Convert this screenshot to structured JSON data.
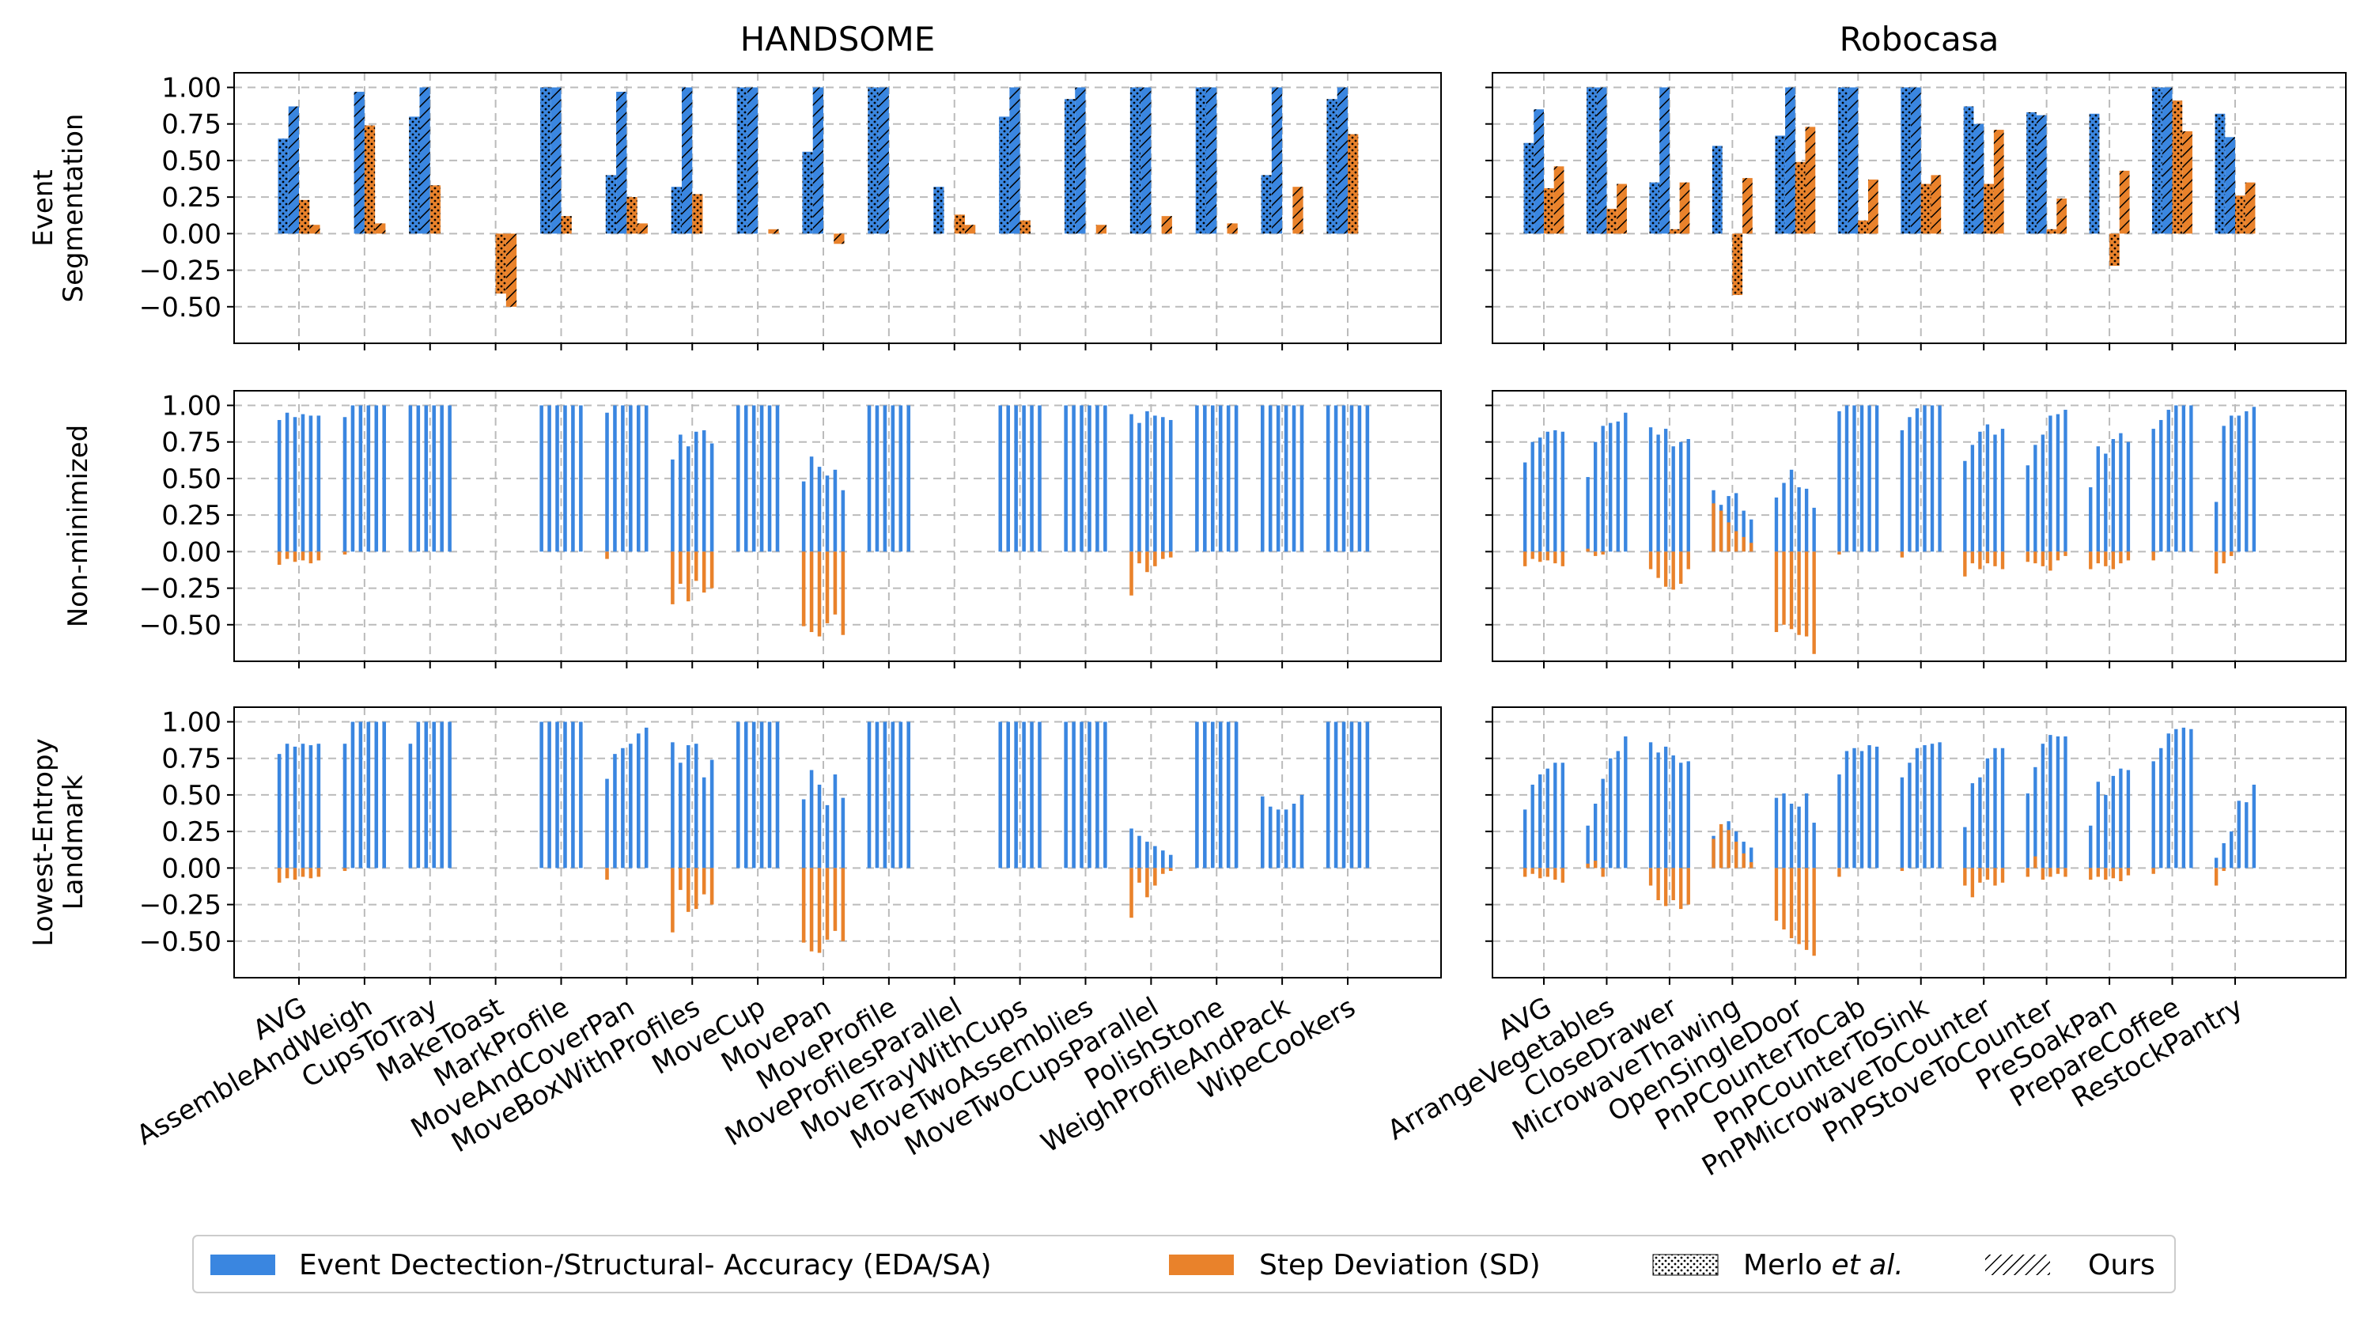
{
  "legend": {
    "eda_label": "Event Dectection-/Structural- Accuracy (EDA/SA)",
    "sd_label": "Step Deviation (SD)",
    "merlo_label": "Merlo",
    "merlo_etal": "et al.",
    "merlo_period": ".",
    "ours_label": "Ours"
  },
  "colors": {
    "eda": "#3a86e0",
    "sd": "#e9822b",
    "grid": "#bbbbbb",
    "axis": "#000000"
  },
  "chart_data": {
    "type": "bar",
    "columns": [
      {
        "title": "HANDSOME",
        "categories": [
          "AVG",
          "AssembleAndWeigh",
          "CupsToTray",
          "MakeToast",
          "MarkProfile",
          "MoveAndCoverPan",
          "MoveBoxWithProfiles",
          "MoveCup",
          "MovePan",
          "MoveProfile",
          "MoveProfilesParallel",
          "MoveTrayWithCups",
          "MoveTwoAssemblies",
          "MoveTwoCupsParallel",
          "PolishStone",
          "WeighProfileAndPack",
          "WipeCookers"
        ]
      },
      {
        "title": "Robocasa",
        "categories": [
          "AVG",
          "ArrangeVegetables",
          "CloseDrawer",
          "MicrowaveThawing",
          "OpenSingleDoor",
          "PnPCounterToCab",
          "PnPCounterToSink",
          "PnPMicrowaveToCounter",
          "PnPStoveToCounter",
          "PreSoakPan",
          "PrepareCoffee",
          "RestockPantry"
        ]
      }
    ],
    "rows": [
      {
        "ylabel": [
          "Event",
          "Segmentation"
        ],
        "ylim": [
          -0.75,
          1.1
        ],
        "yticks": [
          "1.00",
          "0.75",
          "0.50",
          "0.25",
          "0.00",
          "−0.25",
          "−0.50"
        ],
        "ytick_values": [
          1.0,
          0.75,
          0.5,
          0.25,
          0.0,
          -0.25,
          -0.5
        ]
      },
      {
        "ylabel": [
          "Non-minimized"
        ],
        "ylim": [
          -0.75,
          1.1
        ],
        "yticks": [
          "1.00",
          "0.75",
          "0.50",
          "0.25",
          "0.00",
          "−0.25",
          "−0.50"
        ],
        "ytick_values": [
          1.0,
          0.75,
          0.5,
          0.25,
          0.0,
          -0.25,
          -0.5
        ]
      },
      {
        "ylabel": [
          "Lowest-Entropy",
          "Landmark"
        ],
        "ylim": [
          -0.75,
          1.1
        ],
        "yticks": [
          "1.00",
          "0.75",
          "0.50",
          "0.25",
          "0.00",
          "−0.25",
          "−0.50"
        ],
        "ytick_values": [
          1.0,
          0.75,
          0.5,
          0.25,
          0.0,
          -0.25,
          -0.5
        ]
      }
    ],
    "series_notes": "Event Segmentation row: per category [EDA Merlo, EDA Ours, SD Merlo, SD Ours]; other rows: per category 6 thin EDA bars and 6 thin SD bars",
    "panels": {
      "handsome_event": {
        "eda_merlo": [
          0.65,
          0,
          0.8,
          0,
          1.0,
          0.4,
          0.32,
          1.0,
          0.56,
          1.0,
          0.32,
          0.8,
          0.92,
          1.0,
          1.0,
          0.4,
          0.92
        ],
        "eda_ours": [
          0.87,
          0.97,
          1.0,
          0,
          1.0,
          0.97,
          1.0,
          1.0,
          1.0,
          1.0,
          0,
          1.0,
          1.0,
          1.0,
          1.0,
          1.0,
          1.0
        ],
        "sd_merlo": [
          0.23,
          0.74,
          0.33,
          -0.41,
          0.12,
          0.25,
          0.27,
          0,
          0,
          0,
          0.13,
          0.09,
          0,
          0,
          0,
          0,
          0.68
        ],
        "sd_ours": [
          0.06,
          0.07,
          0,
          -0.5,
          0,
          0.07,
          0,
          0.03,
          -0.07,
          0,
          0.06,
          0,
          0.06,
          0.12,
          0.07,
          0.32,
          0
        ]
      },
      "robocasa_event": {
        "eda_merlo": [
          0.62,
          1.0,
          0.35,
          0.6,
          0.67,
          1.0,
          1.0,
          0.87,
          0.83,
          0.82,
          1.0,
          0.82
        ],
        "eda_ours": [
          0.85,
          1.0,
          1.0,
          0,
          1.0,
          1.0,
          1.0,
          0.75,
          0.81,
          0,
          1.0,
          0.66
        ],
        "sd_merlo": [
          0.31,
          0.17,
          0.03,
          -0.42,
          0.49,
          0.09,
          0.34,
          0.34,
          0.03,
          -0.22,
          0.91,
          0.26
        ],
        "sd_ours": [
          0.46,
          0.34,
          0.35,
          0.38,
          0.73,
          0.37,
          0.4,
          0.71,
          0.24,
          0.43,
          0.7,
          0.35
        ]
      },
      "handsome_nonmin": {
        "eda": [
          [
            0.9,
            0.95,
            0.92,
            0.94,
            0.93,
            0.93
          ],
          [
            0.92,
            1.0,
            1.0,
            1.0,
            1.0,
            1.0
          ],
          [
            1.0,
            1.0,
            1.0,
            1.0,
            1.0,
            1.0
          ],
          [
            0,
            0,
            0,
            0,
            0,
            0
          ],
          [
            1.0,
            1.0,
            1.0,
            1.0,
            1.0,
            1.0
          ],
          [
            0.95,
            1.0,
            1.0,
            1.0,
            1.0,
            1.0
          ],
          [
            0.63,
            0.8,
            0.72,
            0.82,
            0.83,
            0.74
          ],
          [
            1.0,
            1.0,
            1.0,
            1.0,
            1.0,
            1.0
          ],
          [
            0.48,
            0.65,
            0.58,
            0.52,
            0.56,
            0.42
          ],
          [
            1.0,
            1.0,
            1.0,
            1.0,
            1.0,
            1.0
          ],
          [
            0,
            0,
            0,
            0,
            0,
            0
          ],
          [
            1.0,
            1.0,
            1.0,
            1.0,
            1.0,
            1.0
          ],
          [
            1.0,
            1.0,
            1.0,
            1.0,
            1.0,
            1.0
          ],
          [
            0.94,
            0.88,
            0.96,
            0.93,
            0.92,
            0.9
          ],
          [
            1.0,
            1.0,
            1.0,
            1.0,
            1.0,
            1.0
          ],
          [
            1.0,
            1.0,
            1.0,
            1.0,
            1.0,
            1.0
          ],
          [
            1.0,
            1.0,
            1.0,
            1.0,
            1.0,
            1.0
          ]
        ],
        "sd": [
          [
            -0.09,
            -0.05,
            -0.07,
            -0.06,
            -0.08,
            -0.06
          ],
          [
            -0.02,
            0,
            0,
            0,
            0,
            0
          ],
          [
            0,
            0,
            0,
            0,
            0,
            0
          ],
          [
            0,
            0,
            0,
            0,
            0,
            0
          ],
          [
            0,
            0,
            0,
            0,
            0,
            0
          ],
          [
            -0.05,
            0,
            0,
            0,
            0,
            0
          ],
          [
            -0.36,
            -0.22,
            -0.34,
            -0.2,
            -0.28,
            -0.25
          ],
          [
            0,
            0,
            0,
            0,
            0,
            0
          ],
          [
            -0.51,
            -0.55,
            -0.58,
            -0.49,
            -0.43,
            -0.57
          ],
          [
            0,
            0,
            0,
            0,
            0,
            0
          ],
          [
            0,
            0,
            0,
            0,
            0,
            0
          ],
          [
            0,
            0,
            0,
            0,
            0,
            0
          ],
          [
            0,
            0,
            0,
            0,
            0,
            0
          ],
          [
            -0.3,
            -0.08,
            -0.14,
            -0.1,
            -0.05,
            -0.04
          ],
          [
            0,
            0,
            0,
            0,
            0,
            0
          ],
          [
            0,
            0,
            0,
            0,
            0,
            0
          ],
          [
            0,
            0,
            0,
            0,
            0,
            0
          ]
        ]
      },
      "robocasa_nonmin": {
        "eda": [
          [
            0.61,
            0.75,
            0.78,
            0.82,
            0.83,
            0.82
          ],
          [
            0.51,
            0.75,
            0.86,
            0.88,
            0.89,
            0.95
          ],
          [
            0.85,
            0.8,
            0.84,
            0.72,
            0.75,
            0.77
          ],
          [
            0.42,
            0.32,
            0.38,
            0.4,
            0.28,
            0.22
          ],
          [
            0.37,
            0.47,
            0.56,
            0.44,
            0.43,
            0.3
          ],
          [
            0.96,
            1.0,
            1.0,
            1.0,
            1.0,
            1.0
          ],
          [
            0.83,
            0.92,
            0.98,
            1.0,
            1.0,
            1.0
          ],
          [
            0.62,
            0.73,
            0.82,
            0.87,
            0.8,
            0.84
          ],
          [
            0.59,
            0.73,
            0.8,
            0.93,
            0.94,
            0.97
          ],
          [
            0.44,
            0.72,
            0.67,
            0.77,
            0.81,
            0.75
          ],
          [
            0.84,
            0.9,
            0.97,
            1.0,
            1.0,
            1.0
          ],
          [
            0.34,
            0.86,
            0.93,
            0.93,
            0.96,
            0.99
          ]
        ],
        "sd": [
          [
            -0.1,
            -0.05,
            -0.07,
            -0.06,
            -0.08,
            -0.1
          ],
          [
            0.02,
            -0.03,
            -0.02,
            0,
            0,
            0
          ],
          [
            -0.12,
            -0.18,
            -0.24,
            -0.26,
            -0.22,
            -0.12
          ],
          [
            0.33,
            0.28,
            0.2,
            0.14,
            0.1,
            0.06
          ],
          [
            -0.55,
            -0.5,
            -0.53,
            -0.57,
            -0.58,
            -0.7
          ],
          [
            -0.02,
            0,
            0,
            0,
            0,
            0
          ],
          [
            -0.04,
            0,
            0,
            0,
            0,
            0
          ],
          [
            -0.17,
            -0.08,
            -0.12,
            -0.08,
            -0.1,
            -0.12
          ],
          [
            -0.07,
            -0.08,
            -0.1,
            -0.13,
            -0.06,
            -0.03
          ],
          [
            -0.12,
            -0.08,
            -0.1,
            -0.12,
            -0.08,
            -0.06
          ],
          [
            -0.06,
            0,
            0,
            0,
            0,
            0
          ],
          [
            -0.15,
            -0.08,
            -0.03,
            0,
            0,
            0
          ]
        ]
      },
      "handsome_lowest": {
        "eda": [
          [
            0.78,
            0.85,
            0.83,
            0.85,
            0.84,
            0.85
          ],
          [
            0.85,
            1.0,
            1.0,
            1.0,
            1.0,
            1.0
          ],
          [
            0.85,
            1.0,
            1.0,
            1.0,
            1.0,
            1.0
          ],
          [
            0,
            0,
            0,
            0,
            0,
            0
          ],
          [
            1.0,
            1.0,
            1.0,
            1.0,
            1.0,
            1.0
          ],
          [
            0.61,
            0.78,
            0.82,
            0.85,
            0.92,
            0.96
          ],
          [
            0.86,
            0.72,
            0.84,
            0.85,
            0.62,
            0.74
          ],
          [
            1.0,
            1.0,
            1.0,
            1.0,
            1.0,
            1.0
          ],
          [
            0.47,
            0.67,
            0.57,
            0.43,
            0.64,
            0.48
          ],
          [
            1.0,
            1.0,
            1.0,
            1.0,
            1.0,
            1.0
          ],
          [
            0,
            0,
            0,
            0,
            0,
            0
          ],
          [
            1.0,
            1.0,
            1.0,
            1.0,
            1.0,
            1.0
          ],
          [
            1.0,
            1.0,
            1.0,
            1.0,
            1.0,
            1.0
          ],
          [
            0.27,
            0.22,
            0.18,
            0.15,
            0.12,
            0.09
          ],
          [
            1.0,
            1.0,
            1.0,
            1.0,
            1.0,
            1.0
          ],
          [
            0.49,
            0.42,
            0.4,
            0.4,
            0.44,
            0.5
          ],
          [
            1.0,
            1.0,
            1.0,
            1.0,
            1.0,
            1.0
          ]
        ],
        "sd": [
          [
            -0.1,
            -0.07,
            -0.08,
            -0.06,
            -0.07,
            -0.06
          ],
          [
            -0.02,
            0,
            0,
            0,
            0,
            0
          ],
          [
            0,
            0,
            0,
            0,
            0,
            0
          ],
          [
            0,
            0,
            0,
            0,
            0,
            0
          ],
          [
            0,
            0,
            0,
            0,
            0,
            0
          ],
          [
            -0.08,
            0,
            0,
            0,
            0,
            0
          ],
          [
            -0.44,
            -0.15,
            -0.3,
            -0.28,
            -0.18,
            -0.25
          ],
          [
            0,
            0,
            0,
            0,
            0,
            0
          ],
          [
            -0.51,
            -0.57,
            -0.58,
            -0.49,
            -0.43,
            -0.5
          ],
          [
            0,
            0,
            0,
            0,
            0,
            0
          ],
          [
            0,
            0,
            0,
            0,
            0,
            0
          ],
          [
            0,
            0,
            0,
            0,
            0,
            0
          ],
          [
            0,
            0,
            0,
            0,
            0,
            0
          ],
          [
            -0.34,
            -0.1,
            -0.2,
            -0.12,
            -0.04,
            -0.02
          ],
          [
            0,
            0,
            0,
            0,
            0,
            0
          ],
          [
            0,
            0,
            0,
            0,
            0,
            0
          ],
          [
            0,
            0,
            0,
            0,
            0,
            0
          ]
        ]
      },
      "robocasa_lowest": {
        "eda": [
          [
            0.4,
            0.57,
            0.64,
            0.68,
            0.72,
            0.72
          ],
          [
            0.29,
            0.44,
            0.61,
            0.75,
            0.8,
            0.9
          ],
          [
            0.86,
            0.79,
            0.83,
            0.77,
            0.72,
            0.73
          ],
          [
            0.22,
            0.27,
            0.32,
            0.25,
            0.18,
            0.14
          ],
          [
            0.48,
            0.51,
            0.44,
            0.42,
            0.51,
            0.31
          ],
          [
            0.64,
            0.8,
            0.82,
            0.8,
            0.84,
            0.83
          ],
          [
            0.62,
            0.72,
            0.82,
            0.84,
            0.85,
            0.86
          ],
          [
            0.28,
            0.58,
            0.62,
            0.75,
            0.82,
            0.82
          ],
          [
            0.51,
            0.69,
            0.85,
            0.91,
            0.9,
            0.9
          ],
          [
            0.29,
            0.59,
            0.5,
            0.63,
            0.68,
            0.67
          ],
          [
            0.73,
            0.82,
            0.92,
            0.95,
            0.96,
            0.95
          ],
          [
            0.07,
            0.17,
            0.25,
            0.46,
            0.45,
            0.57
          ]
        ],
        "sd": [
          [
            -0.06,
            -0.04,
            -0.07,
            -0.06,
            -0.08,
            -0.1
          ],
          [
            0.03,
            0.05,
            -0.06,
            0,
            0,
            0
          ],
          [
            -0.12,
            -0.22,
            -0.26,
            -0.22,
            -0.28,
            -0.25
          ],
          [
            0.2,
            0.3,
            0.26,
            0.18,
            0.1,
            0.04
          ],
          [
            -0.36,
            -0.42,
            -0.48,
            -0.52,
            -0.56,
            -0.6
          ],
          [
            -0.06,
            0,
            0,
            0,
            0,
            0
          ],
          [
            -0.02,
            0,
            0,
            0,
            0,
            0
          ],
          [
            -0.12,
            -0.2,
            -0.1,
            -0.08,
            -0.12,
            -0.1
          ],
          [
            -0.06,
            0.08,
            -0.08,
            -0.06,
            -0.04,
            -0.06
          ],
          [
            -0.08,
            -0.06,
            -0.08,
            -0.07,
            -0.09,
            -0.05
          ],
          [
            -0.04,
            0,
            0,
            0,
            0,
            0
          ],
          [
            -0.12,
            -0.02,
            0,
            0,
            0,
            0
          ]
        ]
      }
    }
  }
}
